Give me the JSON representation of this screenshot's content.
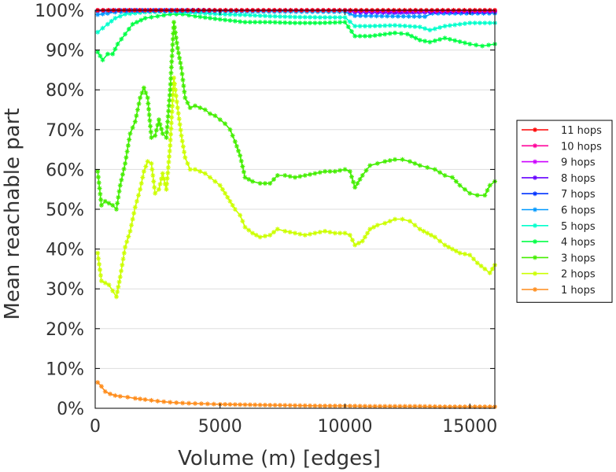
{
  "chart_data": {
    "type": "line",
    "title": "",
    "xlabel": "Volume (m) [edges]",
    "ylabel": "Mean reachable part",
    "xlim": [
      0,
      16000
    ],
    "ylim": [
      0,
      100
    ],
    "xticks": [
      0,
      5000,
      10000,
      15000
    ],
    "xtick_labels": [
      "0",
      "5000",
      "10000",
      "15000"
    ],
    "yticks": [
      0,
      10,
      20,
      30,
      40,
      50,
      60,
      70,
      80,
      90,
      100
    ],
    "ytick_labels": [
      "0%",
      "10%",
      "20%",
      "30%",
      "40%",
      "50%",
      "60%",
      "70%",
      "80%",
      "90%",
      "100%"
    ],
    "grid": true,
    "legend_position": "right",
    "series": [
      {
        "name": "11 hops",
        "color": "#ff0000",
        "x": [
          100,
          2000,
          5000,
          10000,
          15000,
          16000
        ],
        "y": [
          100,
          100,
          100,
          100,
          100,
          100
        ]
      },
      {
        "name": "10 hops",
        "color": "#ff0099",
        "x": [
          100,
          2000,
          5000,
          10000,
          15000,
          16000
        ],
        "y": [
          100,
          100,
          100,
          100,
          100,
          100
        ]
      },
      {
        "name": "9 hops",
        "color": "#cc00ff",
        "x": [
          100,
          2000,
          5000,
          10000,
          10400,
          13000,
          15000,
          16000
        ],
        "y": [
          100,
          100,
          100,
          100,
          99.8,
          99.7,
          99.8,
          99.8
        ]
      },
      {
        "name": "8 hops",
        "color": "#6600ff",
        "x": [
          100,
          2000,
          5000,
          10000,
          10400,
          12000,
          13400,
          15000,
          16000
        ],
        "y": [
          100,
          100,
          100,
          100,
          99.5,
          99.4,
          99.6,
          99.6,
          99.6
        ]
      },
      {
        "name": "7 hops",
        "color": "#0033ff",
        "x": [
          100,
          600,
          1000,
          5000,
          10000,
          10400,
          13000,
          16000
        ],
        "y": [
          99.8,
          99.9,
          100,
          100,
          100,
          99.6,
          99.5,
          99.6
        ]
      },
      {
        "name": "6 hops",
        "color": "#0099ff",
        "x": [
          100,
          500,
          800,
          1500,
          5000,
          10000,
          10400,
          13200,
          13500,
          16000
        ],
        "y": [
          98.9,
          99.2,
          99.5,
          99.8,
          99.7,
          99.6,
          98.6,
          98.4,
          99.2,
          99.2
        ]
      },
      {
        "name": "5 hops",
        "color": "#00ffcc",
        "x": [
          100,
          300,
          500,
          800,
          1200,
          2000,
          3000,
          4000,
          5000,
          6000,
          7000,
          8000,
          9000,
          10000,
          10400,
          11000,
          12000,
          13000,
          13400,
          14000,
          15000,
          16000
        ],
        "y": [
          94.5,
          95.5,
          96.5,
          98,
          99,
          99.5,
          99.7,
          99.4,
          99.0,
          98.8,
          98.5,
          98.3,
          98.2,
          98.2,
          96.0,
          96.0,
          96.2,
          95.8,
          95.0,
          96.0,
          96.8,
          96.8
        ]
      },
      {
        "name": "4 hops",
        "color": "#00ff44",
        "x": [
          100,
          300,
          500,
          700,
          900,
          1200,
          1500,
          2000,
          2500,
          3000,
          3500,
          4000,
          5000,
          6000,
          7000,
          8000,
          9000,
          10000,
          10400,
          11000,
          12000,
          12500,
          13000,
          13400,
          14000,
          15000,
          15500,
          16000
        ],
        "y": [
          89.5,
          87.5,
          89.0,
          89.0,
          91.5,
          94.0,
          96.5,
          98.0,
          98.5,
          99.0,
          99.0,
          98.5,
          97.7,
          97.0,
          97.0,
          96.8,
          96.8,
          97.0,
          93.5,
          93.5,
          94.3,
          94.0,
          92.5,
          92.0,
          93.0,
          91.5,
          91.0,
          91.5
        ]
      },
      {
        "name": "3 hops",
        "color": "#44ee00",
        "x": [
          100,
          250,
          400,
          550,
          700,
          850,
          1000,
          1200,
          1400,
          1600,
          1800,
          1950,
          2100,
          2250,
          2400,
          2550,
          2700,
          2850,
          3000,
          3150,
          3300,
          3450,
          3600,
          3800,
          4000,
          4200,
          4400,
          4600,
          4800,
          5000,
          5200,
          5400,
          5600,
          5800,
          6000,
          6300,
          6600,
          7000,
          7300,
          7600,
          8000,
          8400,
          8800,
          9200,
          9600,
          10000,
          10200,
          10400,
          10700,
          11000,
          11300,
          11600,
          12000,
          12300,
          12600,
          13000,
          13300,
          13600,
          14000,
          14300,
          14600,
          15000,
          15300,
          15600,
          15800,
          16000
        ],
        "y": [
          59.5,
          51.0,
          52.0,
          51.5,
          51.0,
          50.0,
          56.0,
          61.5,
          69.0,
          72.0,
          78.0,
          80.5,
          78.0,
          68.0,
          68.5,
          72.5,
          69.0,
          68.0,
          80.0,
          97.0,
          90.5,
          85.5,
          78.0,
          75.5,
          76.0,
          75.5,
          75.0,
          74.0,
          73.5,
          72.5,
          71.5,
          70.0,
          67.0,
          63.5,
          58.0,
          57.0,
          56.5,
          56.5,
          58.5,
          58.5,
          58.0,
          58.5,
          59.0,
          59.5,
          59.5,
          60.0,
          59.5,
          55.5,
          58.5,
          61.0,
          61.5,
          62.0,
          62.5,
          62.5,
          62.0,
          61.0,
          60.5,
          60.0,
          58.5,
          58.0,
          56.0,
          54.0,
          53.5,
          53.5,
          56.0,
          57.0
        ]
      },
      {
        "name": "2 hops",
        "color": "#ccff00",
        "x": [
          100,
          250,
          400,
          550,
          700,
          850,
          1000,
          1200,
          1400,
          1600,
          1800,
          1950,
          2100,
          2250,
          2400,
          2550,
          2700,
          2850,
          3000,
          3150,
          3300,
          3450,
          3600,
          3800,
          4000,
          4200,
          4400,
          4600,
          4800,
          5000,
          5200,
          5400,
          5600,
          5800,
          6000,
          6300,
          6600,
          7000,
          7300,
          7600,
          8000,
          8400,
          8800,
          9200,
          9600,
          10000,
          10200,
          10400,
          10700,
          11000,
          11300,
          11600,
          12000,
          12300,
          12600,
          13000,
          13300,
          13600,
          14000,
          14300,
          14600,
          15000,
          15300,
          15600,
          15800,
          16000
        ],
        "y": [
          39.0,
          32.0,
          31.5,
          31.0,
          29.5,
          28.0,
          33.0,
          40.5,
          44.5,
          50.5,
          55.0,
          59.5,
          62.0,
          61.5,
          54.0,
          55.0,
          59.0,
          55.0,
          66.0,
          83.0,
          75.5,
          68.5,
          63.0,
          60.0,
          60.0,
          59.5,
          59.0,
          58.0,
          57.0,
          56.0,
          54.0,
          52.0,
          50.0,
          48.5,
          45.5,
          44.0,
          43.0,
          43.5,
          45.0,
          44.5,
          44.0,
          43.5,
          44.0,
          44.5,
          44.0,
          44.0,
          43.5,
          41.0,
          42.0,
          45.0,
          46.0,
          46.5,
          47.5,
          47.5,
          47.0,
          45.0,
          44.0,
          43.0,
          41.0,
          40.0,
          39.0,
          38.5,
          36.5,
          35.0,
          34.0,
          36.0
        ]
      },
      {
        "name": "1 hops",
        "color": "#ff8c1a",
        "x": [
          100,
          250,
          400,
          600,
          800,
          1000,
          1300,
          1600,
          2000,
          2500,
          3000,
          3500,
          4000,
          4500,
          5000,
          6000,
          7000,
          8000,
          9000,
          10000,
          11000,
          12000,
          13000,
          14000,
          15000,
          16000
        ],
        "y": [
          6.5,
          5.5,
          4.2,
          3.6,
          3.2,
          3.0,
          2.8,
          2.5,
          2.2,
          1.8,
          1.5,
          1.3,
          1.2,
          1.1,
          1.0,
          0.9,
          0.8,
          0.7,
          0.6,
          0.6,
          0.5,
          0.5,
          0.5,
          0.4,
          0.4,
          0.4
        ]
      }
    ]
  }
}
